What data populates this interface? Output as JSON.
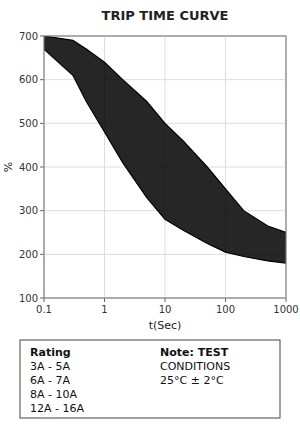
{
  "chart_data": {
    "type": "band",
    "title": "TRIP TIME CURVE",
    "x_label": "t(Sec)",
    "y_label": "%",
    "x": [
      0.1,
      0.3,
      0.5,
      1,
      2,
      5,
      10,
      20,
      50,
      100,
      200,
      500,
      1000
    ],
    "series": [
      {
        "color": "#000000",
        "values": [
          670,
          610,
          550,
          480,
          410,
          330,
          280,
          255,
          225,
          205,
          195,
          185,
          180
        ]
      },
      {
        "color": "#000000",
        "values": [
          700,
          690,
          670,
          640,
          600,
          550,
          500,
          460,
          400,
          350,
          300,
          265,
          250
        ]
      }
    ],
    "log": "x",
    "xlim": [
      0.1,
      1000
    ],
    "ylim": [
      100,
      700
    ],
    "xticks": [
      0.1,
      1,
      10,
      100,
      1000
    ],
    "yticks": [
      100,
      200,
      300,
      400,
      500,
      600,
      700
    ],
    "grid": true,
    "annotations": [
      "Rating",
      "3A - 5A",
      "6A - 7A",
      "8A - 10A",
      "12A - 16A",
      "Note: TEST",
      "CONDITIONS",
      "25°C ± 2°C"
    ]
  }
}
